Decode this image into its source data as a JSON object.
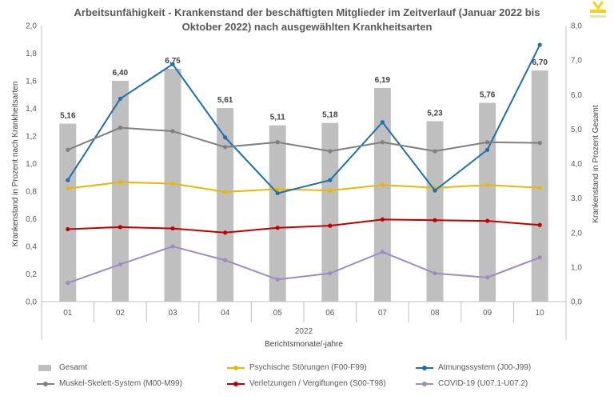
{
  "chart_data": {
    "type": "bar+line",
    "title": "Arbeitsunfähigkeit - Krankenstand der beschäftigten Mitglieder im Zeitverlauf (Januar 2022 bis Oktober 2022) nach ausgewählten Krankheitsarten",
    "title_lines": [
      "Arbeitsunfähigkeit - Krankenstand der beschäftigten Mitglieder im Zeitverlauf (Januar 2022 bis",
      "Oktober 2022) nach ausgewählten Krankheitsarten"
    ],
    "categories": [
      "01",
      "02",
      "03",
      "04",
      "05",
      "06",
      "07",
      "08",
      "09",
      "10"
    ],
    "year_label": "2022",
    "xlabel": "Berichtsmonate/-jahre",
    "ylabel_left": "Krankenstand in Prozent nach Krankheitsarten",
    "ylabel_right": "Krankenstand in Prozent Gesamt",
    "ylim_left": [
      0,
      2.0
    ],
    "ylim_right": [
      0,
      8.0
    ],
    "yticks_left": [
      "0,0",
      "0,2",
      "0,4",
      "0,6",
      "0,8",
      "1,0",
      "1,2",
      "1,4",
      "1,6",
      "1,8",
      "2,0"
    ],
    "yticks_right": [
      "0,0",
      "1,0",
      "2,0",
      "3,0",
      "4,0",
      "5,0",
      "6,0",
      "7,0",
      "8,0"
    ],
    "bars": {
      "name": "Gesamt",
      "axis": "right",
      "color": "#BFBFBF",
      "values": [
        5.16,
        6.4,
        6.75,
        5.61,
        5.11,
        5.18,
        6.19,
        5.23,
        5.76,
        6.7
      ],
      "labels": [
        "5,16",
        "6,40",
        "6,75",
        "5,61",
        "5,11",
        "5,18",
        "6,19",
        "5,23",
        "5,76",
        "6,70"
      ]
    },
    "series": [
      {
        "name": "Psychische Störungen (F00-F99)",
        "color": "#E5B80B",
        "axis": "left",
        "values": [
          0.82,
          0.865,
          0.855,
          0.795,
          0.815,
          0.805,
          0.845,
          0.825,
          0.845,
          0.825
        ]
      },
      {
        "name": "Atmungssystem (J00-J99)",
        "color": "#1F6FAE",
        "axis": "left",
        "values": [
          0.88,
          1.47,
          1.72,
          1.19,
          0.785,
          0.88,
          1.3,
          0.805,
          1.1,
          1.86
        ]
      },
      {
        "name": "Muskel-Skelett-System (M00-M99)",
        "color": "#7F7F7F",
        "axis": "left",
        "values": [
          1.1,
          1.26,
          1.235,
          1.12,
          1.155,
          1.09,
          1.155,
          1.09,
          1.155,
          1.15
        ]
      },
      {
        "name": "Verletzungen / Vergiftungen (S00-T98)",
        "color": "#C00000",
        "axis": "left",
        "values": [
          0.525,
          0.54,
          0.53,
          0.5,
          0.535,
          0.55,
          0.595,
          0.59,
          0.585,
          0.555
        ]
      },
      {
        "name": "COVID-19 (U07.1-U07.2)",
        "color": "#9E8CC1",
        "axis": "left",
        "values": [
          0.135,
          0.27,
          0.4,
          0.3,
          0.16,
          0.205,
          0.36,
          0.205,
          0.175,
          0.32
        ]
      }
    ],
    "legend_position": "bottom",
    "grid": false
  }
}
